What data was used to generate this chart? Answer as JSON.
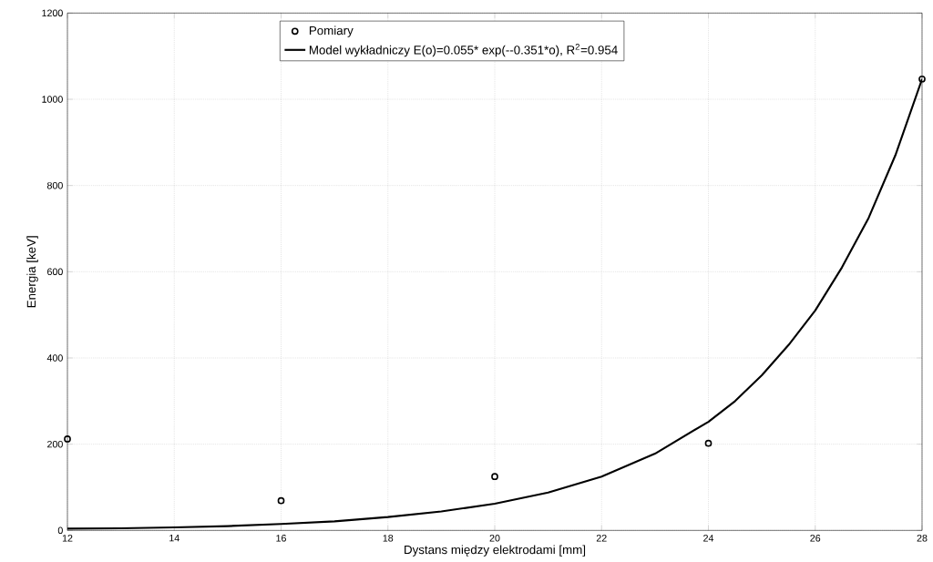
{
  "chart_data": {
    "type": "scatter",
    "xlabel": "Dystans między elektrodami [mm]",
    "ylabel": "Energia [keV]",
    "xlim": [
      12,
      28
    ],
    "ylim": [
      0,
      1200
    ],
    "xticks": [
      12,
      14,
      16,
      18,
      20,
      22,
      24,
      26,
      28
    ],
    "yticks": [
      0,
      200,
      400,
      600,
      800,
      1000,
      1200
    ],
    "grid": true,
    "legend": "top",
    "marker": "circle",
    "series": [
      {
        "name": "Pomiary",
        "color": "#000000",
        "x": [
          12,
          16,
          20,
          24,
          28
        ],
        "values": [
          212,
          69,
          125,
          202,
          1047
        ]
      },
      {
        "name": "Model wykładniczy E(o)=0.055* exp(--0.351*o),  R$^{2}$=0.954",
        "type": "line",
        "color": "#000000",
        "marker": "none",
        "line_style": "solid",
        "x": [
          12,
          13,
          14,
          15,
          16,
          17,
          18,
          19,
          20,
          21,
          22,
          23,
          24,
          24.5,
          25,
          25.5,
          26,
          26.5,
          27,
          27.5,
          28
        ],
        "values": [
          4,
          5,
          7,
          10,
          15,
          21,
          31,
          44,
          62,
          88,
          125,
          178,
          252,
          300,
          360,
          430,
          510,
          610,
          725,
          870,
          1047
        ]
      }
    ]
  }
}
